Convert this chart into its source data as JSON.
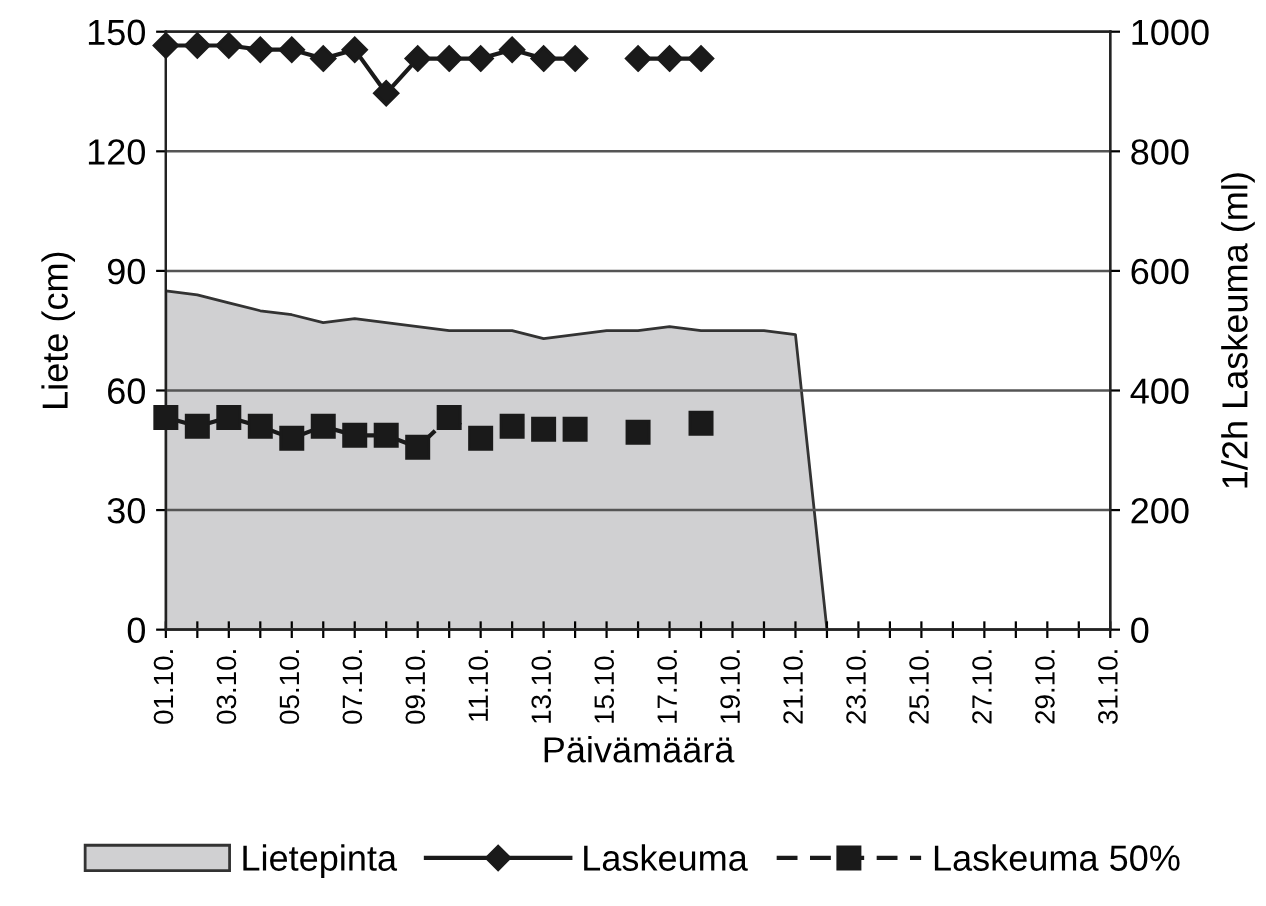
{
  "chart_data": {
    "type": "line",
    "xlabel": "Päivämäärä",
    "ylabel": "Liete (cm)",
    "y2label": "1/2h Laskeuma (ml)",
    "categories": [
      "01.10.",
      null,
      "03.10.",
      null,
      "05.10.",
      null,
      "07.10.",
      null,
      "09.10.",
      null,
      "11.10.",
      null,
      "13.10.",
      null,
      "15.10.",
      null,
      "17.10.",
      null,
      "19.10.",
      null,
      "21.10.",
      null,
      "23.10.",
      null,
      "25.10.",
      null,
      "27.10.",
      null,
      "29.10.",
      null,
      "31.10."
    ],
    "series": [
      {
        "name": "Lietepinta",
        "type": "area",
        "color": "#d0d0d2",
        "values": [
          85,
          84,
          82,
          80,
          79,
          77,
          78,
          77,
          76,
          75,
          75,
          75,
          73,
          74,
          75,
          75,
          76,
          75,
          75,
          75,
          74,
          0,
          0,
          0,
          0,
          0,
          0,
          0,
          0,
          0,
          0
        ]
      },
      {
        "name": "Laskeuma",
        "axis": "y2",
        "color": "#1a1a1a",
        "marker": "diamond",
        "line_style": "solid",
        "values": [
          977,
          977,
          977,
          970,
          970,
          955,
          970,
          897,
          955,
          955,
          955,
          970,
          955,
          955,
          null,
          955,
          955,
          955,
          null,
          null,
          null,
          null,
          null,
          null,
          null,
          null,
          null,
          null,
          null,
          null,
          null
        ]
      },
      {
        "name": "Laskeuma 50%",
        "axis": "y2",
        "color": "#1a1a1a",
        "marker": "square",
        "line_style": "dashed",
        "values": [
          355,
          340,
          355,
          340,
          320,
          340,
          325,
          325,
          305,
          355,
          320,
          340,
          335,
          335,
          null,
          330,
          null,
          345,
          null,
          null,
          null,
          null,
          null,
          null,
          null,
          null,
          null,
          null,
          null,
          null,
          null
        ]
      }
    ],
    "ylim": [
      0,
      150
    ],
    "yticks": [
      0,
      30,
      60,
      90,
      120,
      150
    ],
    "y2lim": [
      0,
      1000
    ],
    "y2ticks": [
      0,
      200,
      400,
      600,
      800,
      1000
    ],
    "grid": "y",
    "legend": "bottom"
  }
}
